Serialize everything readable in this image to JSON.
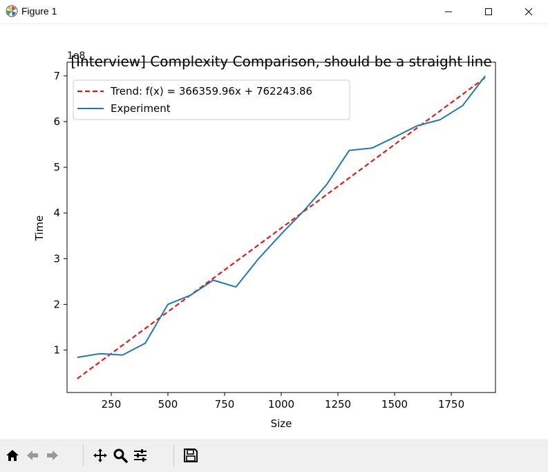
{
  "window": {
    "title": "Figure 1",
    "icons": [
      "matplotlib-logo-icon",
      "minimize-icon",
      "maximize-icon",
      "close-icon"
    ]
  },
  "toolbar": {
    "buttons": [
      "home-icon",
      "back-arrow-icon",
      "forward-arrow-icon",
      "pan-icon",
      "zoom-icon",
      "subplots-config-icon",
      "save-icon"
    ]
  },
  "chart_data": {
    "type": "line",
    "title": "[Interview] Complexity Comparison, should be a straight line",
    "xlabel": "Size",
    "ylabel": "Time",
    "y_offset_label": "1e8",
    "xlim": [
      55,
      1945
    ],
    "ylim": [
      0.07,
      7.3
    ],
    "xticks": [
      250,
      500,
      750,
      1000,
      1250,
      1500,
      1750
    ],
    "xtick_labels": [
      "250",
      "500",
      "750",
      "1000",
      "1250",
      "1500",
      "1750"
    ],
    "yticks": [
      1,
      2,
      3,
      4,
      5,
      6,
      7
    ],
    "ytick_labels": [
      "1",
      "2",
      "3",
      "4",
      "5",
      "6",
      "7"
    ],
    "legend_position": "upper-left",
    "series": [
      {
        "name": "Trend: f(x) = 366359.96x + 762243.86",
        "style": "dashed",
        "color": "#ff0000",
        "x": [
          100,
          1900
        ],
        "y": [
          0.374,
          6.965
        ]
      },
      {
        "name": "Experiment",
        "style": "solid",
        "color": "#1f77b4",
        "x": [
          100,
          200,
          300,
          400,
          500,
          600,
          700,
          800,
          900,
          1000,
          1100,
          1200,
          1300,
          1400,
          1500,
          1600,
          1700,
          1800,
          1900
        ],
        "y": [
          0.84,
          0.92,
          0.89,
          1.15,
          2.0,
          2.2,
          2.53,
          2.38,
          3.0,
          3.54,
          4.05,
          4.62,
          5.37,
          5.42,
          5.66,
          5.91,
          6.04,
          6.35,
          7.0
        ]
      }
    ]
  }
}
